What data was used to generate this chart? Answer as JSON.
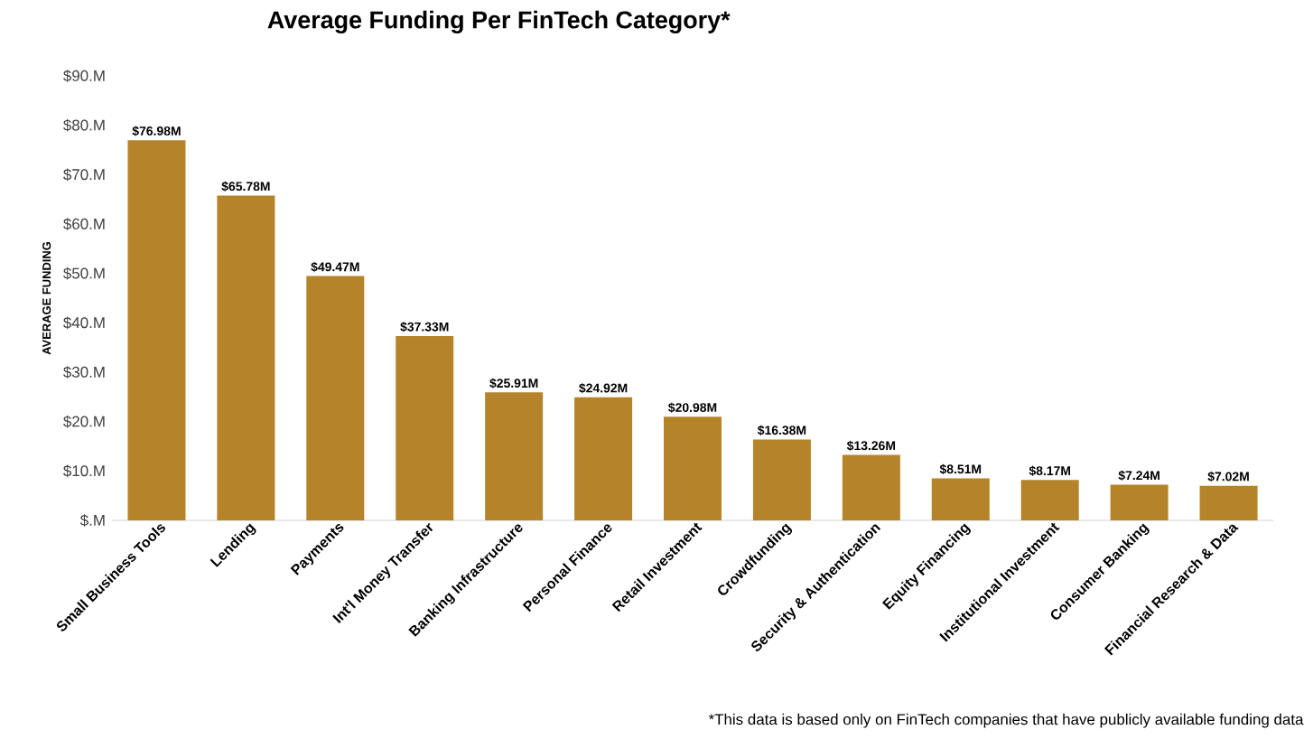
{
  "chart_data": {
    "type": "bar",
    "title": "Average Funding Per FinTech Category*",
    "ylabel": "AVERAGE FUNDING",
    "categories": [
      "Small Business Tools",
      "Lending",
      "Payments",
      "Int'l Money Transfer",
      "Banking Infrastructure",
      "Personal Finance",
      "Retail Investment",
      "Crowdfunding",
      "Security & Authentication",
      "Equity Financing",
      "Institutional Investment",
      "Consumer Banking",
      "Financial Research & Data"
    ],
    "values": [
      76.98,
      65.78,
      49.47,
      37.33,
      25.91,
      24.92,
      20.98,
      16.38,
      13.26,
      8.51,
      8.17,
      7.24,
      7.02
    ],
    "value_labels": [
      "$76.98M",
      "$65.78M",
      "$49.47M",
      "$37.33M",
      "$25.91M",
      "$24.92M",
      "$20.98M",
      "$16.38M",
      "$13.26M",
      "$8.51M",
      "$8.17M",
      "$7.24M",
      "$7.02M"
    ],
    "color": "#b5832a",
    "ylim": [
      0,
      90
    ],
    "yticks": [
      {
        "value": 0,
        "label": "$.M"
      },
      {
        "value": 10,
        "label": "$10.M"
      },
      {
        "value": 20,
        "label": "$20.M"
      },
      {
        "value": 30,
        "label": "$30.M"
      },
      {
        "value": 40,
        "label": "$40.M"
      },
      {
        "value": 50,
        "label": "$50.M"
      },
      {
        "value": 60,
        "label": "$60.M"
      },
      {
        "value": 70,
        "label": "$70.M"
      },
      {
        "value": 80,
        "label": "$80.M"
      },
      {
        "value": 90,
        "label": "$90.M"
      }
    ],
    "grid": false,
    "annotations": [
      "*This data is based only on FinTech companies that have publicly available funding data"
    ]
  }
}
